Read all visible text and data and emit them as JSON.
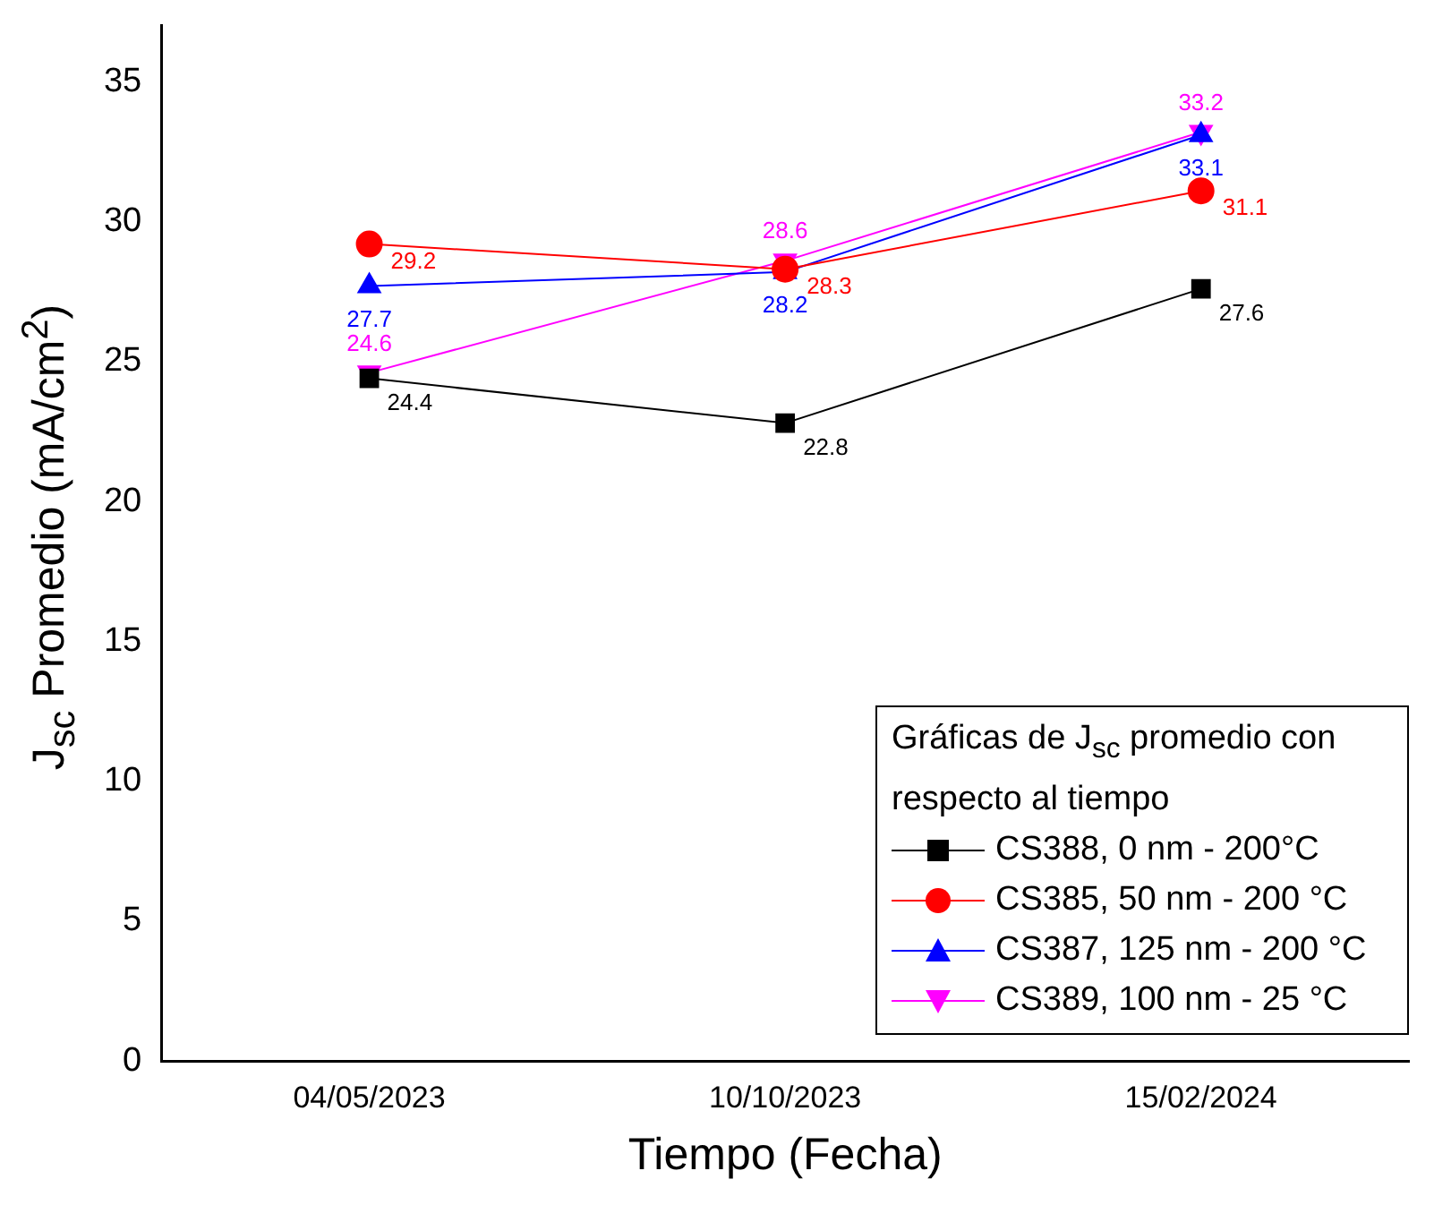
{
  "chart_data": {
    "type": "line",
    "xlabel": "Tiempo (Fecha)",
    "ylabel": "J$_{sc}$ Promedio (mA/cm$^{2}$)",
    "legend_title": "Gráficas de J$_{sc}$ promedio con respecto al tiempo",
    "categories": [
      "04/05/2023",
      "10/10/2023",
      "15/02/2024"
    ],
    "ylim": [
      0,
      37
    ],
    "yticks": [
      0,
      5,
      10,
      15,
      20,
      25,
      30,
      35
    ],
    "grid": false,
    "legend": "bottom right",
    "data_labels": true,
    "line_style": "solid",
    "series": [
      {
        "name": "CS388, 0 nm - 200°C",
        "color": "#000000",
        "marker": "square",
        "values": [
          24.4,
          22.8,
          27.6
        ]
      },
      {
        "name": "CS385, 50 nm - 200 °C",
        "color": "#ff0000",
        "marker": "circle",
        "values": [
          29.2,
          28.3,
          31.1
        ]
      },
      {
        "name": "CS387, 125 nm - 200 °C",
        "color": "#0000ff",
        "marker": "triangle",
        "values": [
          27.7,
          28.2,
          33.1
        ]
      },
      {
        "name": "CS389, 100 nm - 25 °C",
        "color": "#ff00ff",
        "marker": "triangle-down",
        "values": [
          24.6,
          28.6,
          33.2
        ]
      }
    ]
  }
}
